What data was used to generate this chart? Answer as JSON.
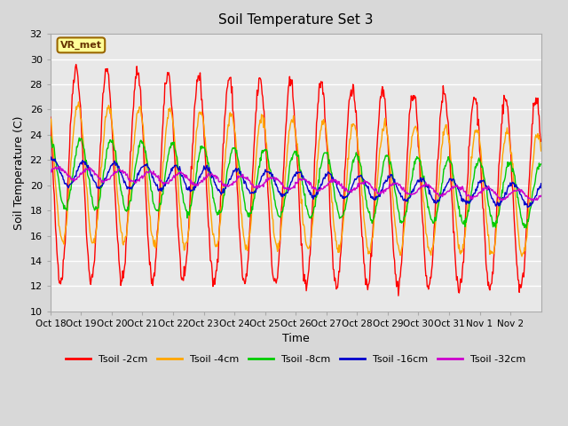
{
  "title": "Soil Temperature Set 3",
  "xlabel": "Time",
  "ylabel": "Soil Temperature (C)",
  "ylim": [
    10,
    32
  ],
  "yticks": [
    10,
    12,
    14,
    16,
    18,
    20,
    22,
    24,
    26,
    28,
    30,
    32
  ],
  "background_color": "#e8e8e8",
  "grid_color": "white",
  "series": [
    {
      "label": "Tsoil -2cm",
      "color": "#ff0000",
      "lw": 1.0
    },
    {
      "label": "Tsoil -4cm",
      "color": "#ffa500",
      "lw": 1.0
    },
    {
      "label": "Tsoil -8cm",
      "color": "#00cc00",
      "lw": 1.0
    },
    {
      "label": "Tsoil -16cm",
      "color": "#0000cc",
      "lw": 1.0
    },
    {
      "label": "Tsoil -32cm",
      "color": "#cc00cc",
      "lw": 1.0
    }
  ],
  "x_tick_labels": [
    "Oct 18",
    "Oct 19",
    "Oct 20",
    "Oct 21",
    "Oct 22",
    "Oct 23",
    "Oct 24",
    "Oct 25",
    "Oct 26",
    "Oct 27",
    "Oct 28",
    "Oct 29",
    "Oct 30",
    "Oct 31",
    "Nov 1",
    "Nov 2"
  ],
  "n_days": 16,
  "label_box_text": "VR_met",
  "label_box_color": "#ffff99",
  "label_box_edge": "#996600"
}
